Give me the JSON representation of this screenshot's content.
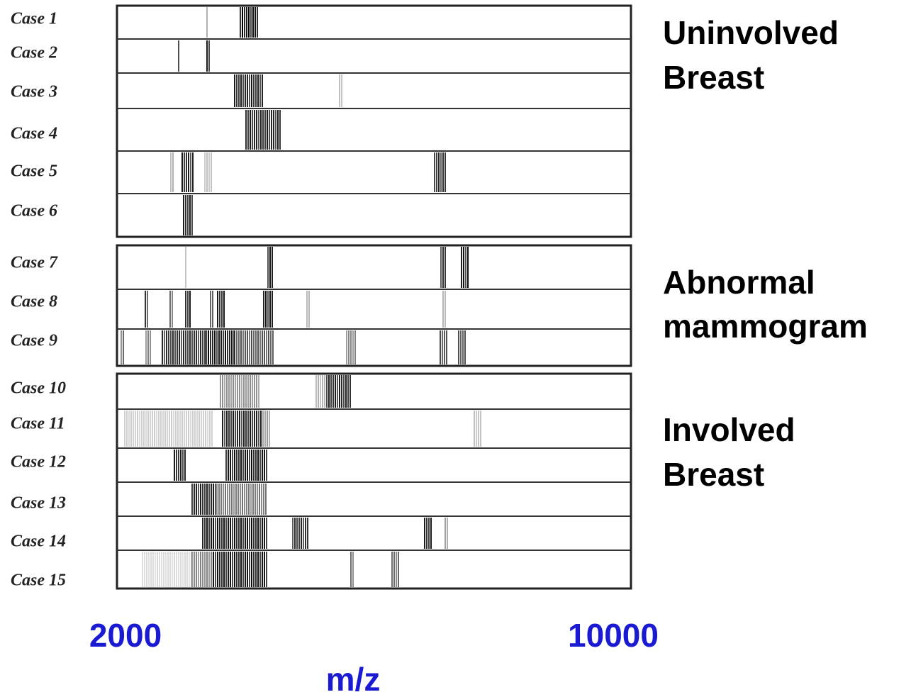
{
  "cases": [
    "Case 1",
    "Case 2",
    "Case 3",
    "Case 4",
    "Case 5",
    "Case 6",
    "Case 7",
    "Case 8",
    "Case 9",
    "Case 10",
    "Case 11",
    "Case 12",
    "Case 13",
    "Case 14",
    "Case 15"
  ],
  "groups": [
    {
      "lines": [
        "Uninvolved",
        "Breast"
      ]
    },
    {
      "lines": [
        "Abnormal",
        "mammogram"
      ]
    },
    {
      "lines": [
        "Involved",
        "Breast"
      ]
    }
  ],
  "axis": {
    "min_label": "2000",
    "max_label": "10000",
    "title": "m/z"
  }
}
